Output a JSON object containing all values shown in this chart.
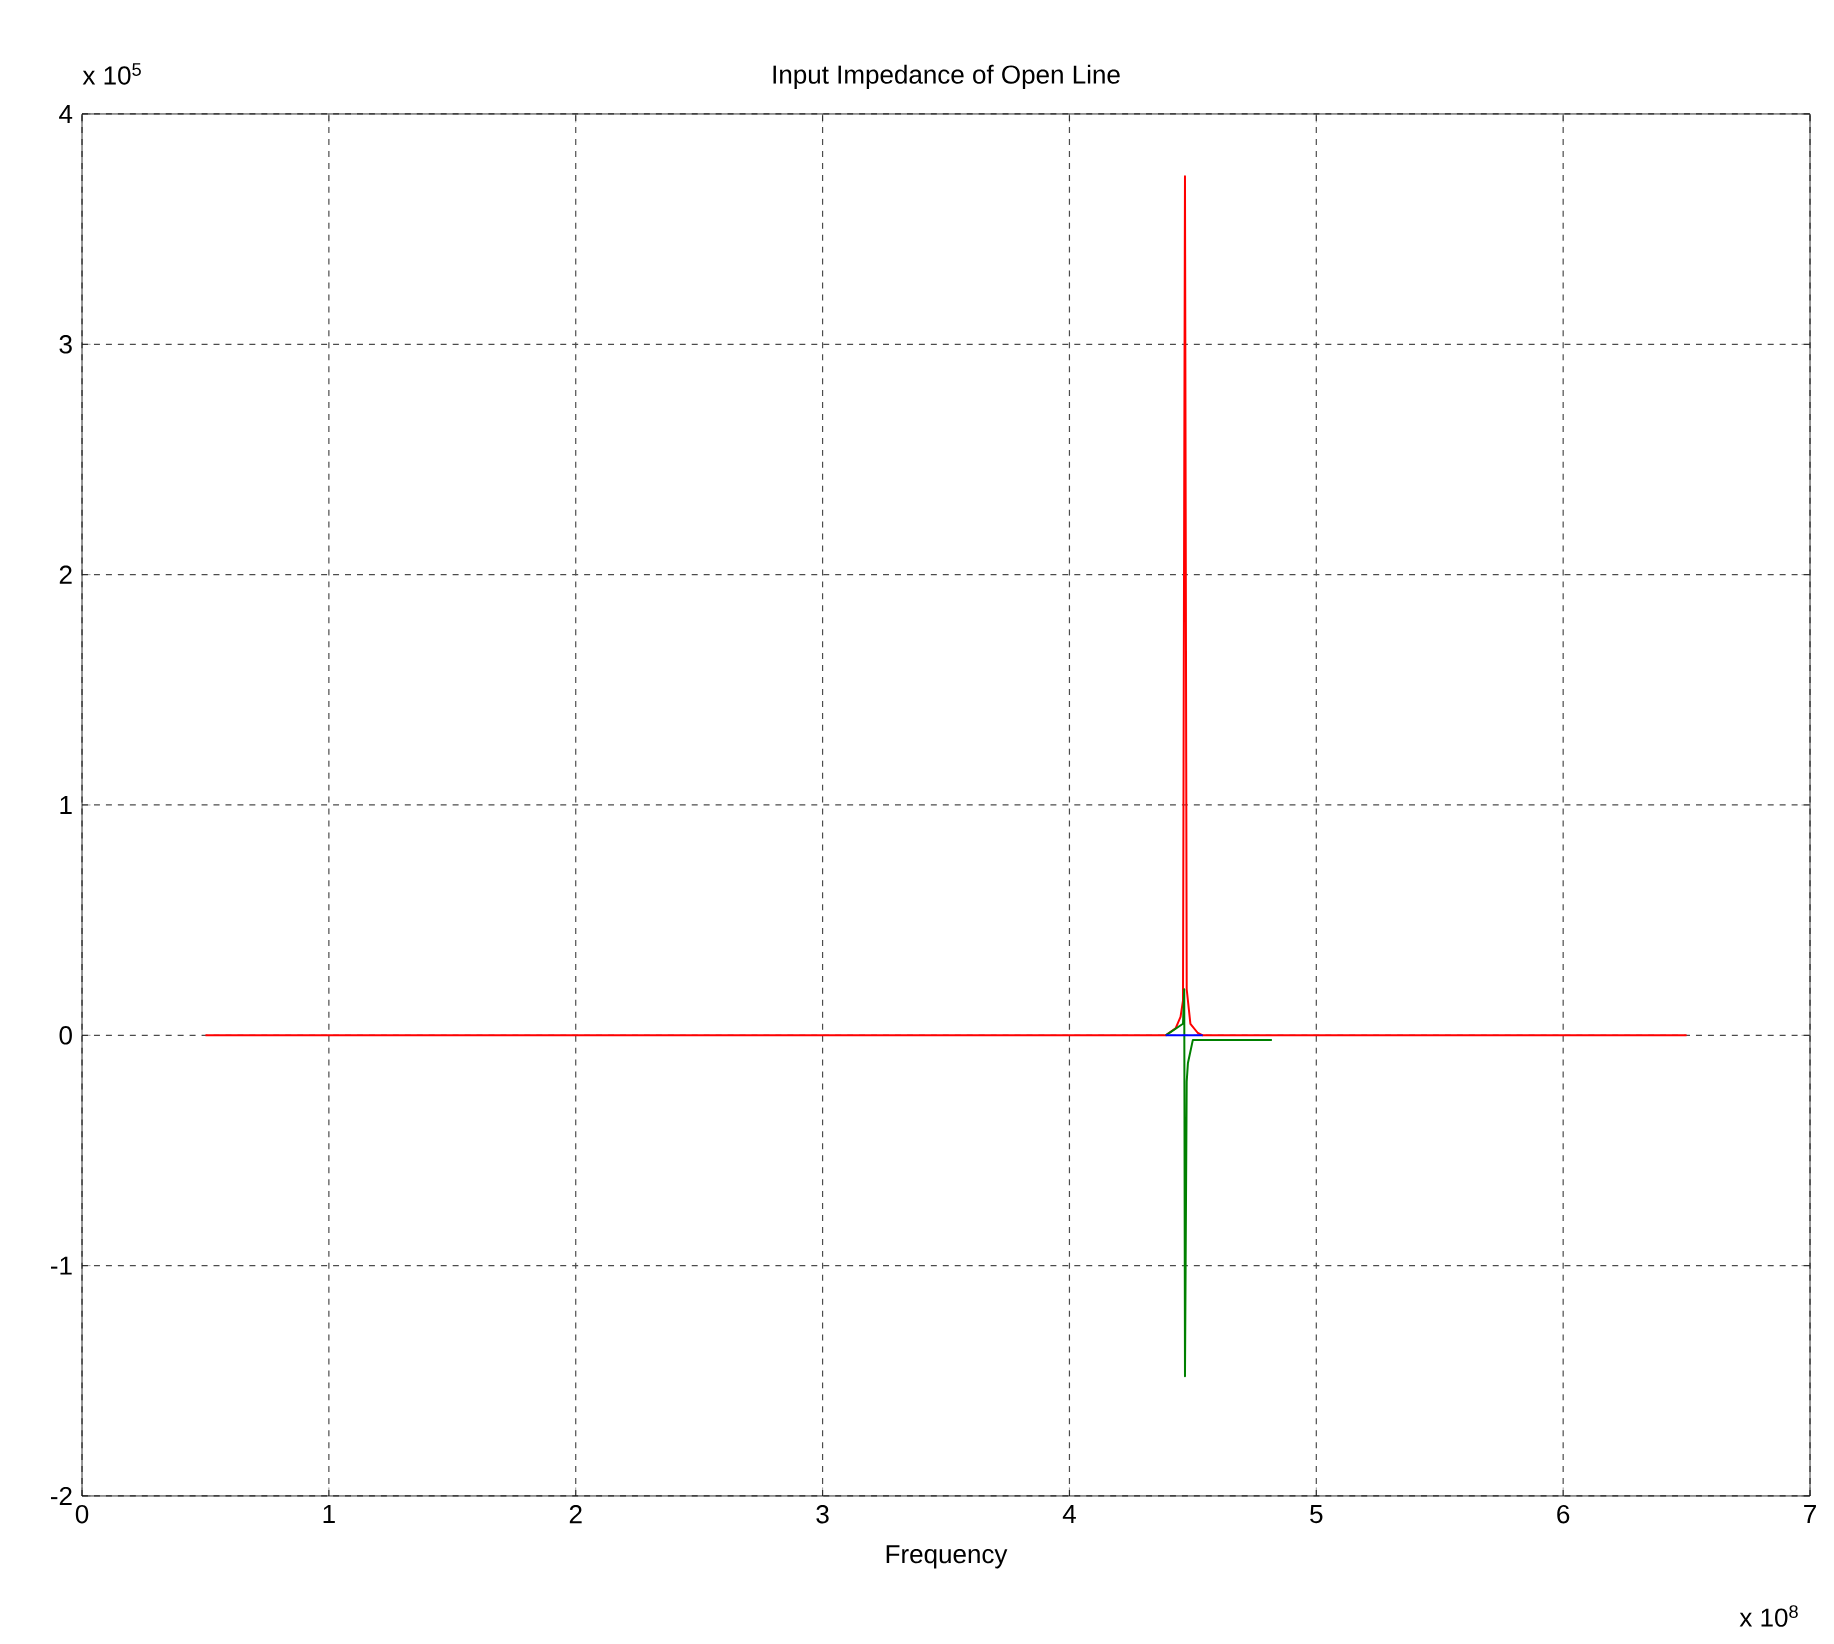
{
  "chart_data": {
    "type": "line",
    "title": "Input Impedance of Open Line",
    "xlabel": "Frequency",
    "annotations": [
      "x 10$^{5}$",
      "x 10$^{8}$"
    ],
    "xlim": [
      0,
      7
    ],
    "ylim": [
      -2,
      4
    ],
    "xticks": [
      0,
      1,
      2,
      3,
      4,
      5,
      6,
      7
    ],
    "yticks": [
      -2,
      -1,
      0,
      1,
      2,
      3,
      4
    ],
    "grid": true,
    "marker": "none",
    "line_style": "solid",
    "series": [
      {
        "color": "#ff0000",
        "x": [
          0.5,
          4.39,
          4.43,
          4.45,
          4.46,
          4.468,
          4.475,
          4.48,
          4.49,
          4.52,
          4.54,
          6.5
        ],
        "values": [
          0,
          0,
          0.03,
          0.08,
          0.15,
          3.73,
          0.2,
          0.15,
          0.05,
          0.01,
          0,
          0
        ]
      },
      {
        "color": "#008000",
        "x": [
          4.39,
          4.46,
          4.465,
          4.468,
          4.475,
          4.48,
          4.5,
          4.53,
          4.82
        ],
        "values": [
          0,
          0.05,
          0.2,
          -1.48,
          -0.2,
          -0.12,
          -0.02,
          -0.02,
          -0.02
        ]
      },
      {
        "color": "#0000ff",
        "x": [
          4.39,
          4.54
        ],
        "values": [
          0,
          0
        ]
      }
    ]
  }
}
